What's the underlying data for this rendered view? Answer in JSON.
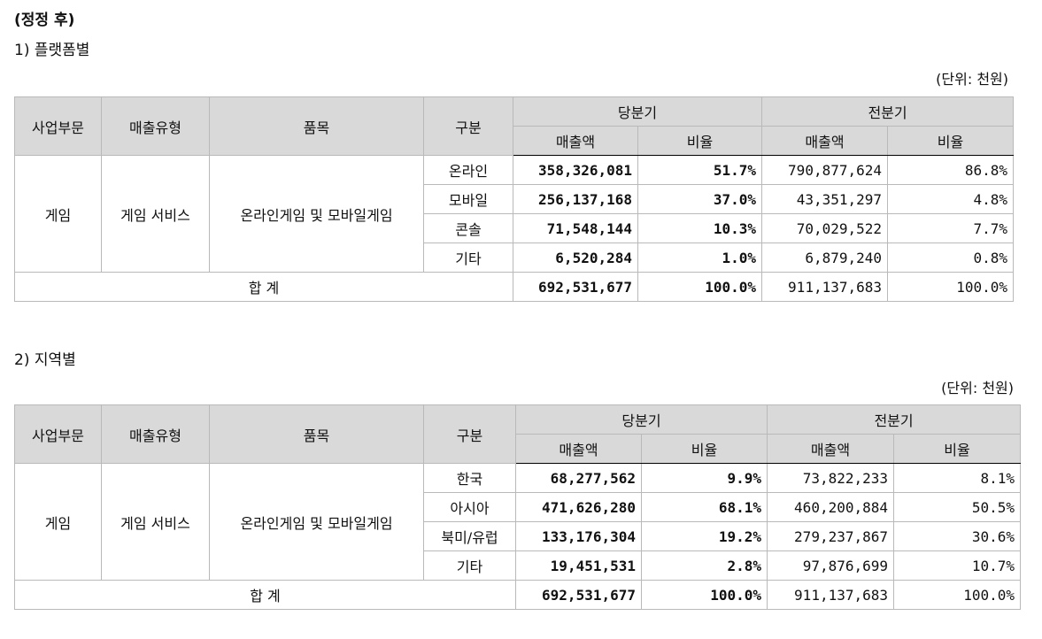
{
  "heading": "(정정 후)",
  "sections": [
    {
      "title": "1) 플랫폼별",
      "unit": "(단위: 천원)",
      "header": {
        "col1": "사업부문",
        "col2": "매출유형",
        "col3": "품목",
        "col4": "구분",
        "current": "당분기",
        "previous": "전분기",
        "sales": "매출액",
        "ratio": "비율"
      },
      "group": {
        "segment": "게임",
        "type": "게임 서비스",
        "item": "온라인게임 및 모바일게임"
      },
      "rows": [
        {
          "label": "온라인",
          "cur_sales": "358,326,081",
          "cur_ratio": "51.7%",
          "prev_sales": "790,877,624",
          "prev_ratio": "86.8%"
        },
        {
          "label": "모바일",
          "cur_sales": "256,137,168",
          "cur_ratio": "37.0%",
          "prev_sales": "43,351,297",
          "prev_ratio": "4.8%"
        },
        {
          "label": "콘솔",
          "cur_sales": "71,548,144",
          "cur_ratio": "10.3%",
          "prev_sales": "70,029,522",
          "prev_ratio": "7.7%"
        },
        {
          "label": "기타",
          "cur_sales": "6,520,284",
          "cur_ratio": "1.0%",
          "prev_sales": "6,879,240",
          "prev_ratio": "0.8%"
        }
      ],
      "total": {
        "label": "합 계",
        "cur_sales": "692,531,677",
        "cur_ratio": "100.0%",
        "prev_sales": "911,137,683",
        "prev_ratio": "100.0%"
      }
    },
    {
      "title": "2) 지역별",
      "unit": "(단위: 천원)",
      "header": {
        "col1": "사업부문",
        "col2": "매출유형",
        "col3": "품목",
        "col4": "구분",
        "current": "당분기",
        "previous": "전분기",
        "sales": "매출액",
        "ratio": "비율"
      },
      "group": {
        "segment": "게임",
        "type": "게임 서비스",
        "item": "온라인게임 및 모바일게임"
      },
      "rows": [
        {
          "label": "한국",
          "cur_sales": "68,277,562",
          "cur_ratio": "9.9%",
          "prev_sales": "73,822,233",
          "prev_ratio": "8.1%"
        },
        {
          "label": "아시아",
          "cur_sales": "471,626,280",
          "cur_ratio": "68.1%",
          "prev_sales": "460,200,884",
          "prev_ratio": "50.5%"
        },
        {
          "label": "북미/유럽",
          "cur_sales": "133,176,304",
          "cur_ratio": "19.2%",
          "prev_sales": "279,237,867",
          "prev_ratio": "30.6%"
        },
        {
          "label": "기타",
          "cur_sales": "19,451,531",
          "cur_ratio": "2.8%",
          "prev_sales": "97,876,699",
          "prev_ratio": "10.7%"
        }
      ],
      "total": {
        "label": "합 계",
        "cur_sales": "692,531,677",
        "cur_ratio": "100.0%",
        "prev_sales": "911,137,683",
        "prev_ratio": "100.0%"
      }
    }
  ]
}
